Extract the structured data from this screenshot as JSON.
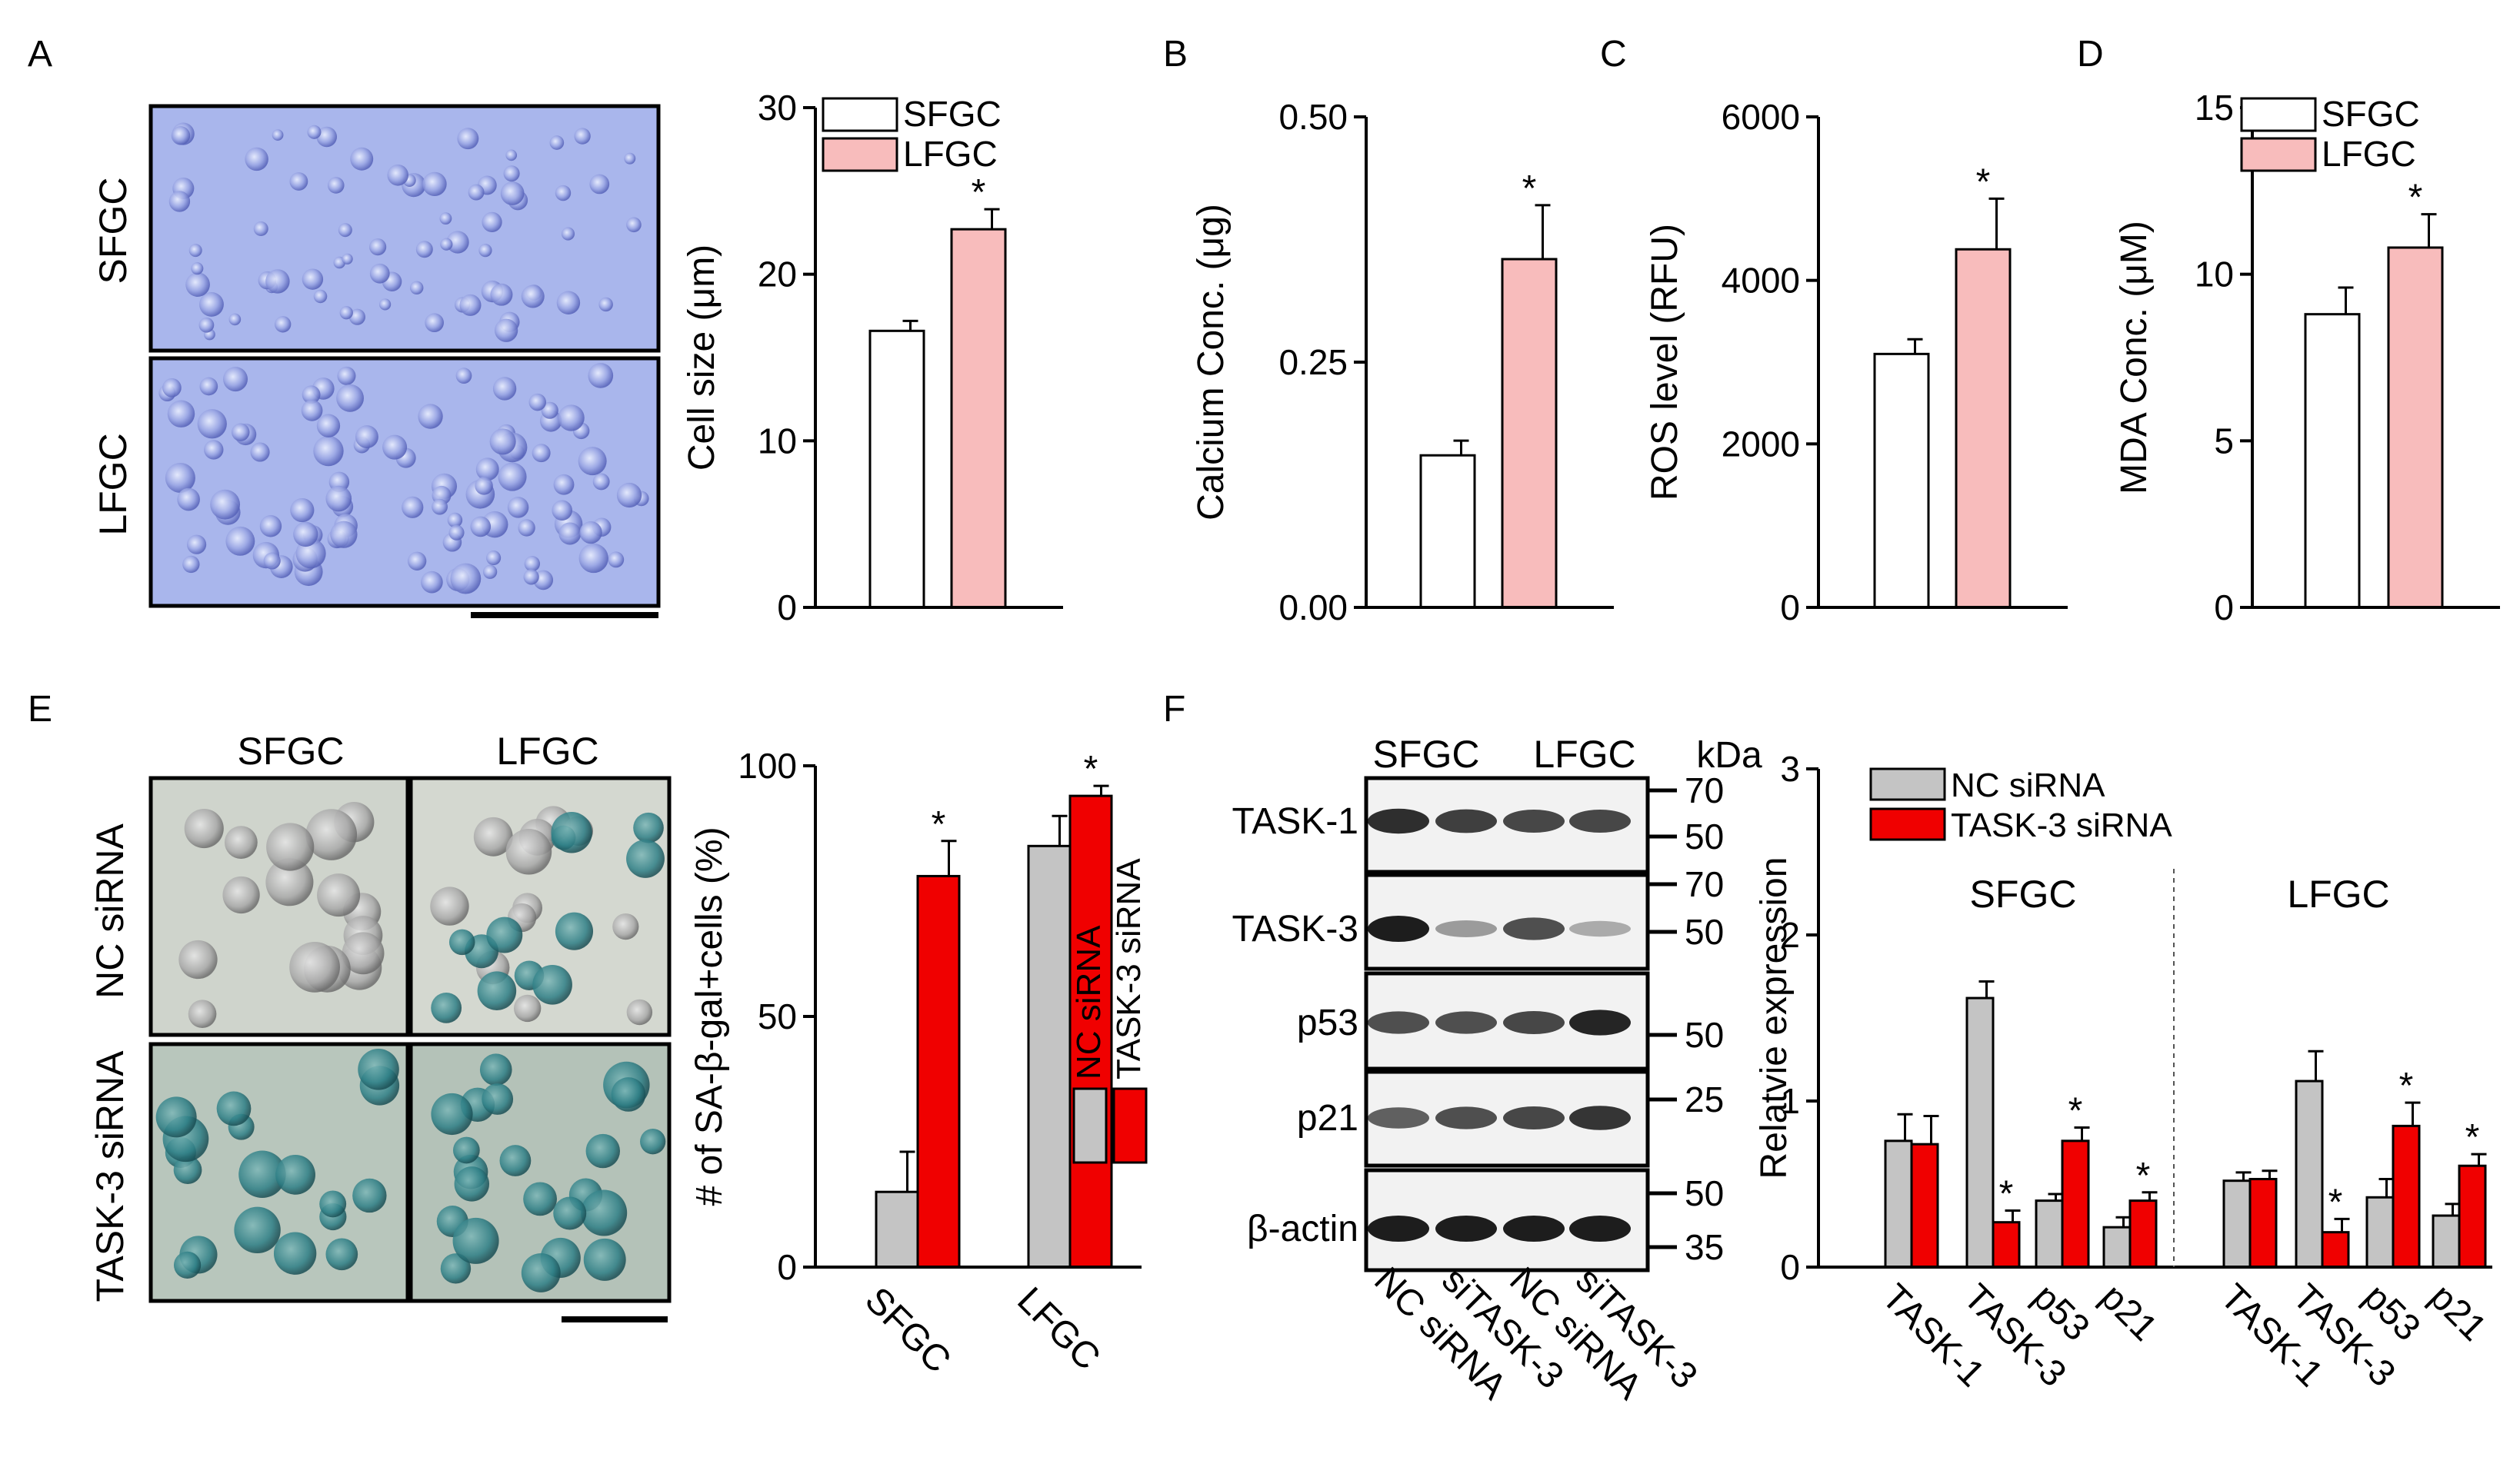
{
  "colors": {
    "sfgc": "#ffffff",
    "lfgc": "#f8bcbc",
    "nc": "#c4c4c4",
    "task3": "#f00000",
    "stain_blue": "#a8b4ea",
    "stain_green": "#c8d0c4"
  },
  "panel_labels": {
    "A": "A",
    "B": "B",
    "C": "C",
    "D": "D",
    "E": "E",
    "F": "F"
  },
  "panelA": {
    "row_labels": [
      "SFGC",
      "LFGC"
    ]
  },
  "panelE": {
    "col_labels": [
      "SFGC",
      "LFGC"
    ],
    "row_labels": [
      "NC siRNA",
      "TASK-3 siRNA"
    ]
  },
  "panelF_blot": {
    "group_labels": [
      "SFGC",
      "LFGC"
    ],
    "kda_label": "kDa",
    "row_labels": [
      "TASK-1",
      "TASK-3",
      "p53",
      "p21",
      "β-actin"
    ],
    "markers": [
      "70",
      "50",
      "70",
      "50",
      "50",
      "25",
      "50",
      "35"
    ],
    "lane_labels": [
      "NC siRNA",
      "siTASK-3",
      "NC siRNA",
      "siTASK-3"
    ]
  },
  "chart_data": [
    {
      "id": "A",
      "type": "bar",
      "categories": [
        "SFGC",
        "LFGC"
      ],
      "values": [
        16.6,
        22.7
      ],
      "errors": [
        0.6,
        1.2
      ],
      "significance": [
        "",
        "*"
      ],
      "legend": [
        "SFGC",
        "LFGC"
      ],
      "legend_position": "top-left",
      "ylabel": "Cell size (μm)",
      "ylim": [
        0,
        30
      ],
      "yticks": [
        "0",
        "10",
        "20",
        "30"
      ],
      "tick_values": [
        0,
        10,
        20,
        30
      ]
    },
    {
      "id": "B",
      "type": "bar",
      "categories": [
        "SFGC",
        "LFGC"
      ],
      "values": [
        0.155,
        0.355
      ],
      "errors": [
        0.015,
        0.055
      ],
      "significance": [
        "",
        "*"
      ],
      "ylabel": "Calcium Conc. (μg)",
      "ylim": [
        0,
        0.5
      ],
      "yticks": [
        "0.00",
        "0.25",
        "0.50"
      ],
      "tick_values": [
        0,
        0.25,
        0.5
      ]
    },
    {
      "id": "C",
      "type": "bar",
      "categories": [
        "SFGC",
        "LFGC"
      ],
      "values": [
        3100,
        4380
      ],
      "errors": [
        180,
        620
      ],
      "significance": [
        "",
        "*"
      ],
      "ylabel": "ROS level (RFU)",
      "ylim": [
        0,
        6000
      ],
      "yticks": [
        "0",
        "2000",
        "4000",
        "6000"
      ],
      "tick_values": [
        0,
        2000,
        4000,
        6000
      ]
    },
    {
      "id": "D",
      "type": "bar",
      "categories": [
        "SFGC",
        "LFGC"
      ],
      "values": [
        8.8,
        10.8
      ],
      "errors": [
        0.8,
        1.0
      ],
      "significance": [
        "",
        "*"
      ],
      "legend": [
        "SFGC",
        "LFGC"
      ],
      "legend_position": "top-left",
      "ylabel": "MDA Conc. (μM)",
      "ylim": [
        0,
        15
      ],
      "yticks": [
        "0",
        "5",
        "10",
        "15"
      ],
      "tick_values": [
        0,
        5,
        10,
        15
      ]
    },
    {
      "id": "E",
      "type": "bar",
      "categories": [
        "SFGC",
        "LFGC"
      ],
      "series": [
        {
          "name": "NC siRNA",
          "values": [
            15,
            84
          ],
          "errors": [
            8,
            6
          ],
          "significance": [
            "",
            ""
          ]
        },
        {
          "name": "TASK-3 siRNA",
          "values": [
            78,
            94
          ],
          "errors": [
            7,
            2
          ],
          "significance": [
            "*",
            "*"
          ]
        }
      ],
      "legend_position": "right",
      "ylabel": "# of SA-β-gal+cells (%)",
      "ylim": [
        0,
        100
      ],
      "yticks": [
        "0",
        "50",
        "100"
      ],
      "tick_values": [
        0,
        50,
        100
      ]
    },
    {
      "id": "F",
      "type": "bar",
      "groups": [
        "SFGC",
        "LFGC"
      ],
      "categories": [
        "TASK-1",
        "TASK-3",
        "p53",
        "p21",
        "TASK-1",
        "TASK-3",
        "p53",
        "p21"
      ],
      "series": [
        {
          "name": "NC siRNA",
          "values": [
            0.76,
            1.62,
            0.4,
            0.24,
            0.52,
            1.12,
            0.42,
            0.31
          ],
          "errors": [
            0.16,
            0.1,
            0.04,
            0.06,
            0.05,
            0.18,
            0.11,
            0.07
          ],
          "significance": [
            "",
            "",
            "",
            "",
            "",
            "",
            "",
            ""
          ]
        },
        {
          "name": "TASK-3 siRNA",
          "values": [
            0.74,
            0.27,
            0.76,
            0.4,
            0.53,
            0.21,
            0.85,
            0.61
          ],
          "errors": [
            0.17,
            0.07,
            0.08,
            0.05,
            0.05,
            0.08,
            0.14,
            0.07
          ],
          "significance": [
            "",
            "*",
            "*",
            "*",
            "",
            "*",
            "*",
            "*"
          ]
        }
      ],
      "legend_position": "top-left",
      "ylabel": "Relatvie expression",
      "ylim": [
        0,
        3
      ],
      "yticks": [
        "0",
        "1",
        "2",
        "3"
      ],
      "tick_values": [
        0,
        1,
        2,
        3
      ]
    }
  ]
}
